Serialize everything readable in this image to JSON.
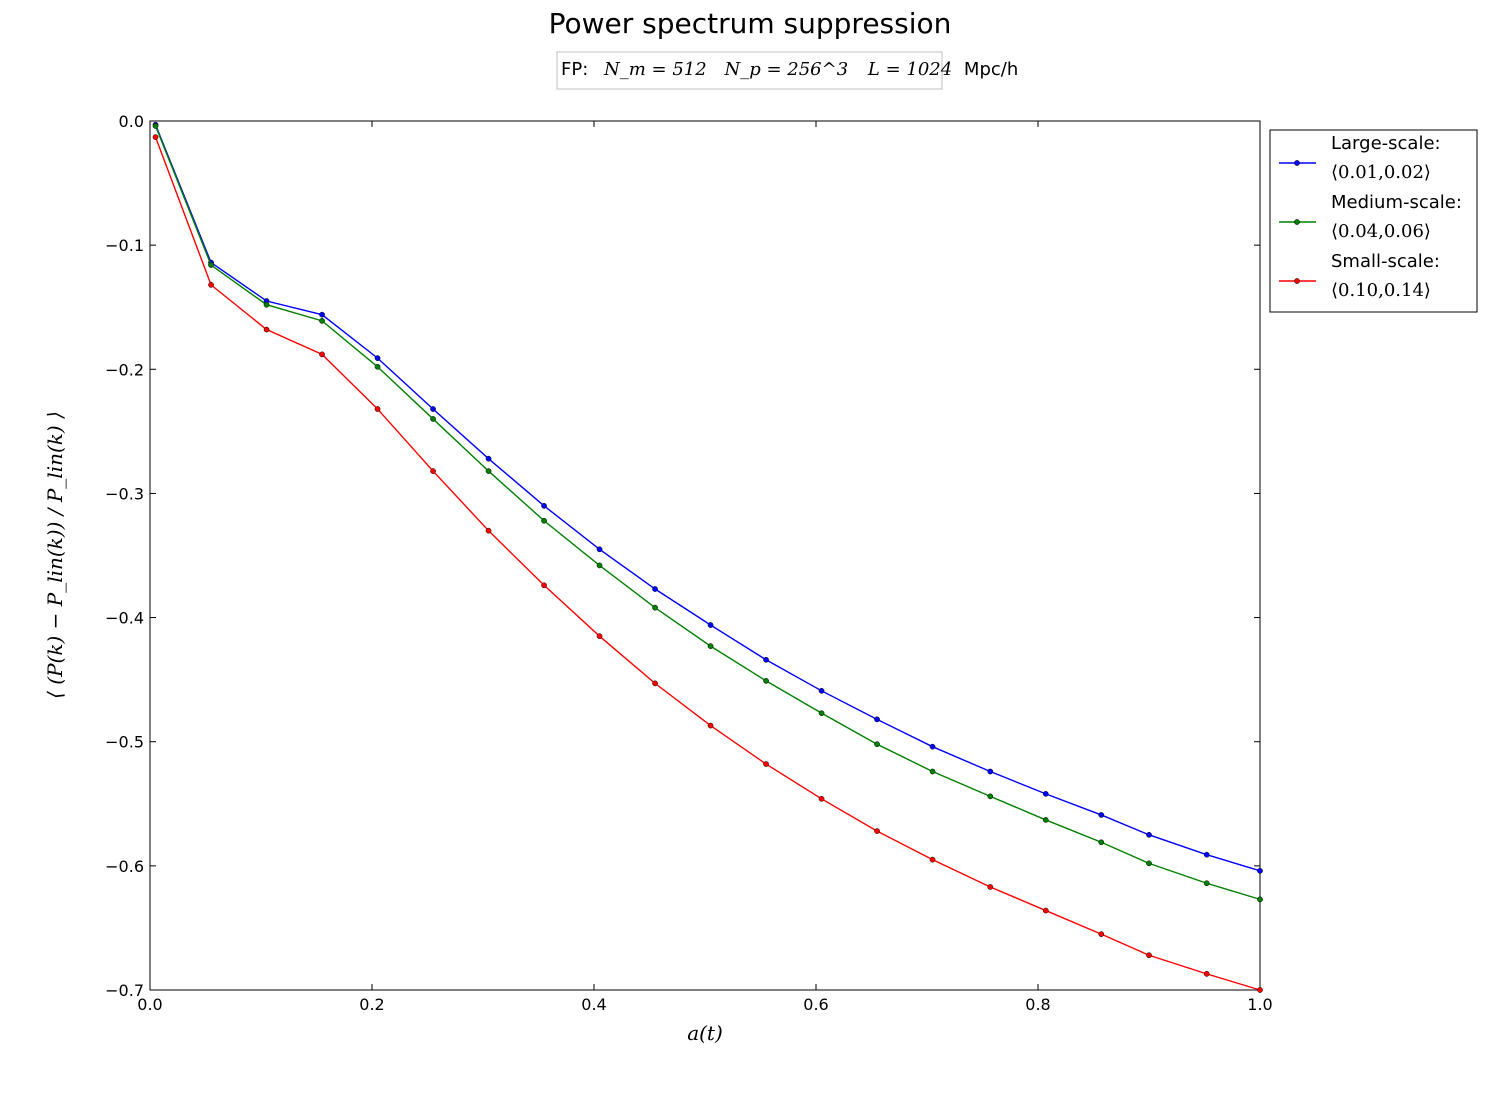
{
  "chart_data": {
    "type": "line",
    "title": "Power spectrum suppression",
    "subtitle": {
      "prefix": "FP:",
      "nm": "N_m = 512",
      "np": "N_p = 256^3",
      "box": "L = 1024",
      "unit": "Mpc/h"
    },
    "xlabel": "a(t)",
    "ylabel": "⟨ (P(k) − P_lin(k)) / P_lin(k) ⟩",
    "xlim": [
      0.0,
      1.0
    ],
    "ylim": [
      -0.7,
      0.0
    ],
    "xticks": [
      "0.0",
      "0.2",
      "0.4",
      "0.6",
      "0.8",
      "1.0"
    ],
    "yticks": [
      "0.0",
      "−0.1",
      "−0.2",
      "−0.3",
      "−0.4",
      "−0.5",
      "−0.6",
      "−0.7"
    ],
    "grid": false,
    "legend_position": "outside-top-right",
    "x": [
      0.005,
      0.055,
      0.105,
      0.155,
      0.205,
      0.255,
      0.305,
      0.355,
      0.405,
      0.455,
      0.505,
      0.555,
      0.605,
      0.655,
      0.705,
      0.757,
      0.807,
      0.857,
      0.9,
      0.952,
      1.0
    ],
    "series": [
      {
        "name": "Large-scale:",
        "range": "⟨0.01,0.02⟩",
        "color": "#0000ff",
        "values": [
          -0.003,
          -0.114,
          -0.145,
          -0.156,
          -0.191,
          -0.232,
          -0.272,
          -0.31,
          -0.345,
          -0.377,
          -0.406,
          -0.434,
          -0.459,
          -0.482,
          -0.504,
          -0.524,
          -0.542,
          -0.559,
          -0.575,
          -0.591,
          -0.604
        ]
      },
      {
        "name": "Medium-scale:",
        "range": "⟨0.04,0.06⟩",
        "color": "#008000",
        "values": [
          -0.004,
          -0.116,
          -0.148,
          -0.161,
          -0.198,
          -0.24,
          -0.282,
          -0.322,
          -0.358,
          -0.392,
          -0.423,
          -0.451,
          -0.477,
          -0.502,
          -0.524,
          -0.544,
          -0.563,
          -0.581,
          -0.598,
          -0.614,
          -0.627
        ]
      },
      {
        "name": "Small-scale:",
        "range": "⟨0.10,0.14⟩",
        "color": "#ff0000",
        "values": [
          -0.013,
          -0.132,
          -0.168,
          -0.188,
          -0.232,
          -0.282,
          -0.33,
          -0.374,
          -0.415,
          -0.453,
          -0.487,
          -0.518,
          -0.546,
          -0.572,
          -0.595,
          -0.617,
          -0.636,
          -0.655,
          -0.672,
          -0.687,
          -0.7
        ]
      }
    ]
  }
}
